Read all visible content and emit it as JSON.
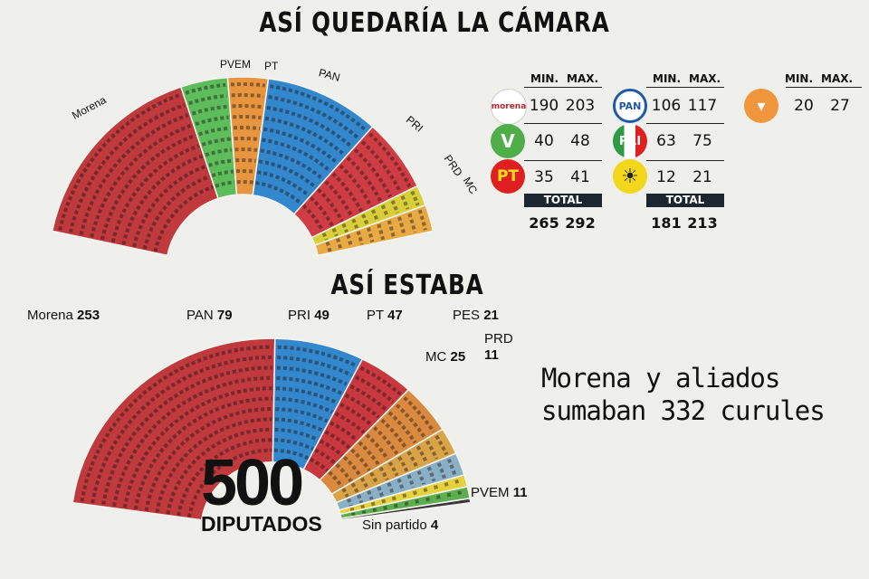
{
  "titles": {
    "top": "ASÍ QUEDARÍA LA CÁMARA",
    "bottom": "ASÍ ESTABA"
  },
  "table": {
    "min_label": "MIN.",
    "max_label": "MAX.",
    "total_label": "TOTAL",
    "groups": [
      {
        "rows": [
          {
            "party": "Morena",
            "logo_text": "morena",
            "color": "#ffffff",
            "min": "190",
            "max": "203"
          },
          {
            "party": "PVEM",
            "logo_text": "V",
            "color": "#4fae48",
            "min": "40",
            "max": "48"
          },
          {
            "party": "PT",
            "logo_text": "PT",
            "color": "#e02020",
            "min": "35",
            "max": "41"
          }
        ],
        "total_min": "265",
        "total_max": "292"
      },
      {
        "rows": [
          {
            "party": "PAN",
            "logo_text": "PAN",
            "color": "#1f5aa8",
            "min": "106",
            "max": "117"
          },
          {
            "party": "PRI",
            "logo_text": "PRI",
            "color": "#e02020",
            "min": "63",
            "max": "75"
          },
          {
            "party": "PRD",
            "logo_text": "☀",
            "color": "#f2d71a",
            "min": "12",
            "max": "21"
          }
        ],
        "total_min": "181",
        "total_max": "213"
      },
      {
        "rows": [
          {
            "party": "MC",
            "logo_text": "",
            "color": "#f0963c",
            "min": "20",
            "max": "27"
          }
        ]
      }
    ]
  },
  "chart_data": [
    {
      "type": "parliament",
      "title": "ASÍ QUEDARÍA LA CÁMARA",
      "categories": [
        "Morena",
        "PVEM",
        "PT",
        "PAN",
        "PRI",
        "PRD",
        "MC"
      ],
      "values_min": [
        190,
        40,
        35,
        106,
        63,
        12,
        20
      ],
      "values_max": [
        203,
        48,
        41,
        117,
        75,
        21,
        27
      ],
      "colors": [
        "#c0393d",
        "#5cbd5a",
        "#e8953f",
        "#3387cc",
        "#d03c43",
        "#d8cf3a",
        "#e8aa45"
      ]
    },
    {
      "type": "parliament",
      "title": "ASÍ ESTABA",
      "categories": [
        "Morena",
        "PAN",
        "PRI",
        "PT",
        "MC",
        "PES",
        "PRD",
        "PVEM",
        "Sin partido"
      ],
      "values": [
        253,
        79,
        49,
        47,
        25,
        21,
        11,
        11,
        4
      ],
      "colors": [
        "#c0393d",
        "#3387cc",
        "#c8383e",
        "#d98a3e",
        "#d9a448",
        "#8ab0c6",
        "#e6d23c",
        "#5cae4e",
        "#3c3c3c"
      ],
      "total": "500",
      "total_label": "DIPUTADOS"
    }
  ],
  "note": {
    "line1": "Morena y aliados",
    "line2": "sumaban 332 curules"
  }
}
